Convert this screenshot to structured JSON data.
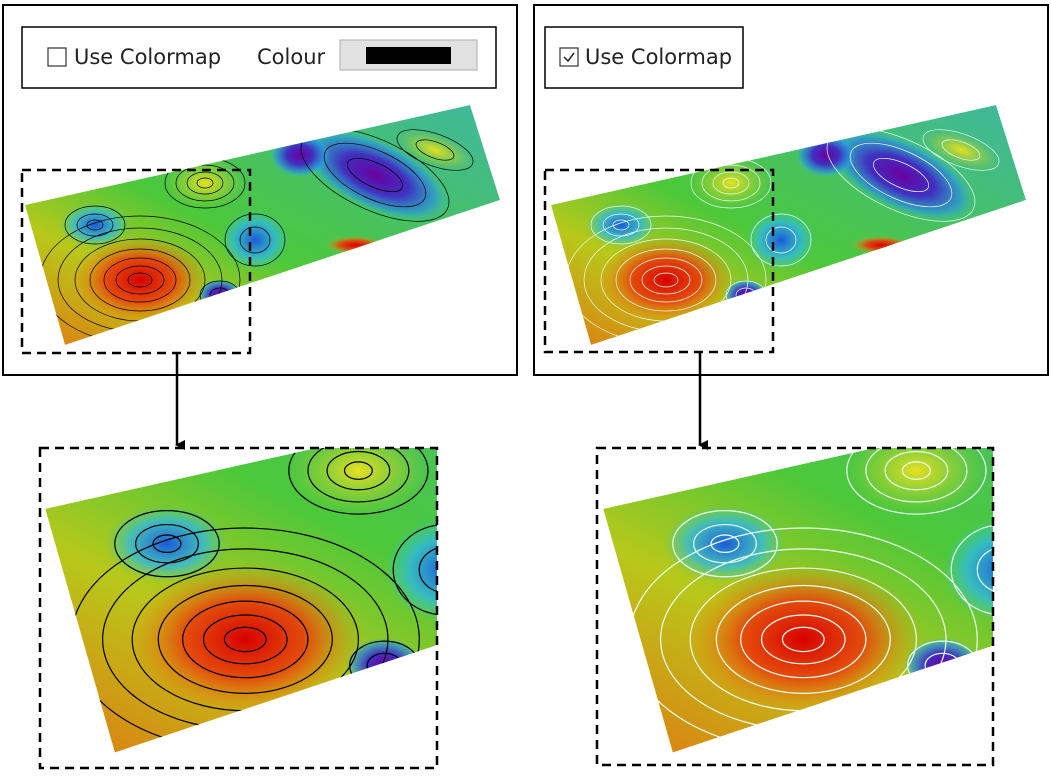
{
  "left_panel": {
    "checkbox": {
      "label": "Use Colormap",
      "checked": false
    },
    "colour_label": "Colour"
  },
  "right_panel": {
    "checkbox": {
      "label": "Use Colormap",
      "checked": true
    }
  }
}
